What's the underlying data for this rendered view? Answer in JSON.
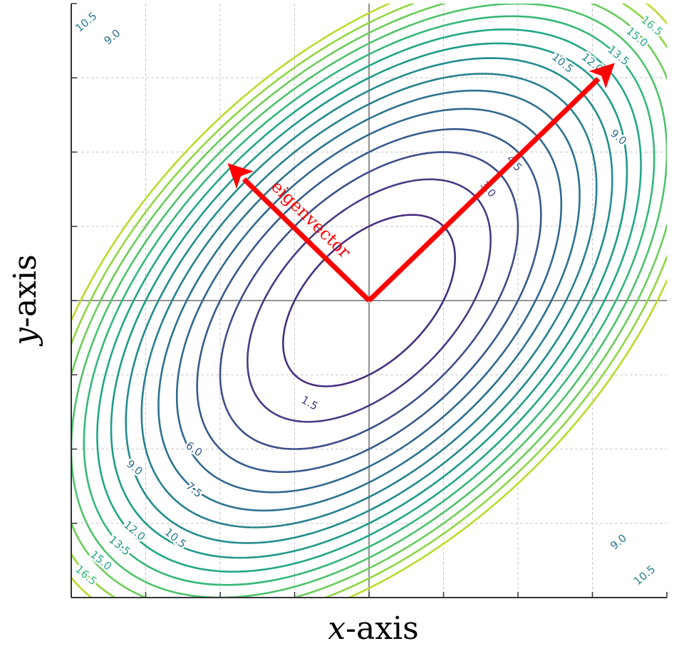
{
  "chart_data": {
    "type": "contour",
    "title": "",
    "xlabel": "x-axis",
    "ylabel": "y-axis",
    "xlim": [
      -4,
      4
    ],
    "ylim": [
      -4,
      4
    ],
    "grid": true,
    "function": "z = 1.5*(x^2 - x*y + y^2)",
    "levels": [
      1.5,
      3.0,
      4.5,
      6.0,
      7.5,
      9.0,
      10.5,
      12.0,
      13.5,
      15.0,
      16.5,
      18.0,
      19.5,
      21.0,
      22.5
    ],
    "colors": {
      "1.5": "#46307e",
      "3.0": "#433e85",
      "4.5": "#3d4e8a",
      "6.0": "#375a8c",
      "7.5": "#31688e",
      "9.0": "#2c728e",
      "10.5": "#27808e",
      "12.0": "#228c8d",
      "13.5": "#1f9a8a",
      "15.0": "#22a785",
      "16.5": "#35b779",
      "18.0": "#4ec36b",
      "19.5": "#6ccd5a",
      "21.0": "#90d743",
      "22.5": "#b5de2b"
    },
    "contour_labels": [
      {
        "text": "1.5",
        "x": -0.8,
        "y": -1.38,
        "angle": 30
      },
      {
        "text": "3.0",
        "x": 1.6,
        "y": 1.5,
        "angle": 50
      },
      {
        "text": "4.5",
        "x": 1.95,
        "y": 1.85,
        "angle": 50
      },
      {
        "text": "6.0",
        "x": -2.35,
        "y": -2.0,
        "angle": 35
      },
      {
        "text": "7.5",
        "x": -2.35,
        "y": -2.55,
        "angle": 40
      },
      {
        "text": "9.0",
        "x": -3.15,
        "y": -2.25,
        "angle": 40
      },
      {
        "text": "10.5",
        "x": -2.6,
        "y": -3.2,
        "angle": 40
      },
      {
        "text": "12.0",
        "x": -3.15,
        "y": -3.1,
        "angle": 40
      },
      {
        "text": "13.5",
        "x": -3.35,
        "y": -3.3,
        "angle": 40
      },
      {
        "text": "15.0",
        "x": -3.6,
        "y": -3.5,
        "angle": 40
      },
      {
        "text": "16.5",
        "x": -3.8,
        "y": -3.7,
        "angle": 40
      },
      {
        "text": "9.0",
        "x": -3.45,
        "y": 3.55,
        "angle": -40
      },
      {
        "text": "10.5",
        "x": -3.8,
        "y": 3.75,
        "angle": -40
      },
      {
        "text": "9.0",
        "x": 3.35,
        "y": 2.2,
        "angle": 40
      },
      {
        "text": "10.5",
        "x": 2.6,
        "y": 3.2,
        "angle": 40
      },
      {
        "text": "12.0",
        "x": 3.0,
        "y": 3.2,
        "angle": 40
      },
      {
        "text": "13.5",
        "x": 3.35,
        "y": 3.3,
        "angle": 40
      },
      {
        "text": "15.0",
        "x": 3.6,
        "y": 3.55,
        "angle": 40
      },
      {
        "text": "16.5",
        "x": 3.8,
        "y": 3.7,
        "angle": 40
      },
      {
        "text": "9.0",
        "x": 3.35,
        "y": -3.25,
        "angle": -40
      },
      {
        "text": "10.5",
        "x": 3.7,
        "y": -3.7,
        "angle": -40
      }
    ],
    "eigenvectors": [
      {
        "from": [
          0,
          0
        ],
        "to": [
          3.3,
          3.2
        ]
      },
      {
        "from": [
          0,
          0
        ],
        "to": [
          -1.9,
          1.85
        ],
        "label": "eigenvector"
      }
    ]
  }
}
